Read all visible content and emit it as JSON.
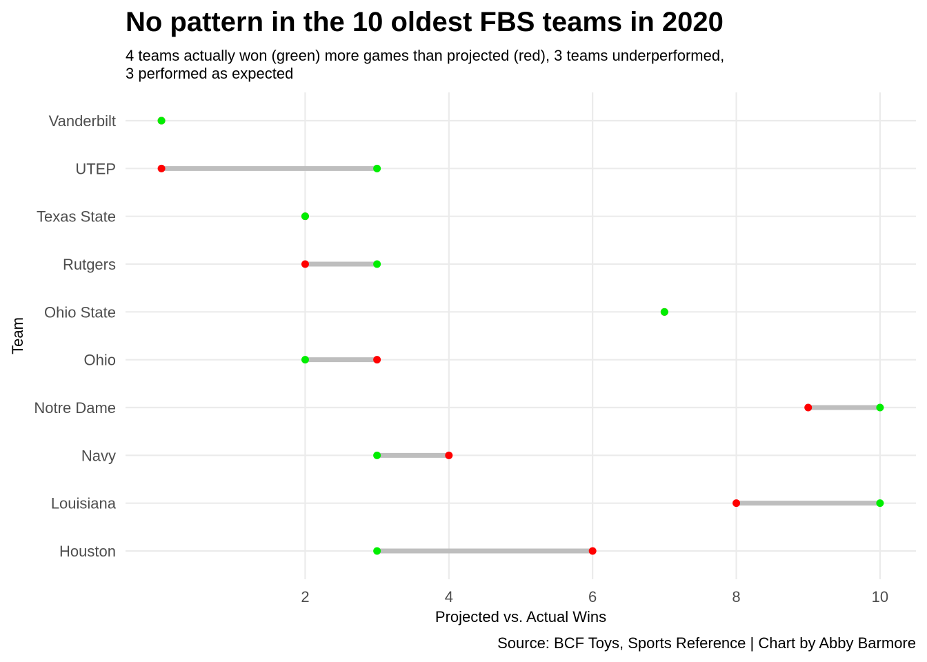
{
  "chart_data": {
    "type": "dumbbell",
    "title": "No pattern in the 10 oldest FBS teams in 2020",
    "subtitle": "4 teams actually won (green) more games than projected (red), 3 teams underperformed,\n3 performed as expected",
    "caption": "Source: BCF Toys, Sports Reference | Chart by Abby Barmore",
    "xlabel": "Projected vs. Actual Wins",
    "ylabel": "Team",
    "xlim": [
      -0.5,
      10.5
    ],
    "xticks": [
      2,
      4,
      6,
      8,
      10
    ],
    "grid": true,
    "colors": {
      "projected": "#ff0000",
      "actual": "#00ee00",
      "segment": "#bebebe",
      "grid": "#ebebeb",
      "axis_text": "#4d4d4d"
    },
    "teams": [
      {
        "name": "Vanderbilt",
        "projected": 0,
        "actual": 0
      },
      {
        "name": "UTEP",
        "projected": 0,
        "actual": 3
      },
      {
        "name": "Texas State",
        "projected": 2,
        "actual": 2
      },
      {
        "name": "Rutgers",
        "projected": 2,
        "actual": 3
      },
      {
        "name": "Ohio State",
        "projected": 7,
        "actual": 7
      },
      {
        "name": "Ohio",
        "projected": 3,
        "actual": 2
      },
      {
        "name": "Notre Dame",
        "projected": 9,
        "actual": 10
      },
      {
        "name": "Navy",
        "projected": 4,
        "actual": 3
      },
      {
        "name": "Louisiana",
        "projected": 8,
        "actual": 10
      },
      {
        "name": "Houston",
        "projected": 6,
        "actual": 3
      }
    ]
  }
}
